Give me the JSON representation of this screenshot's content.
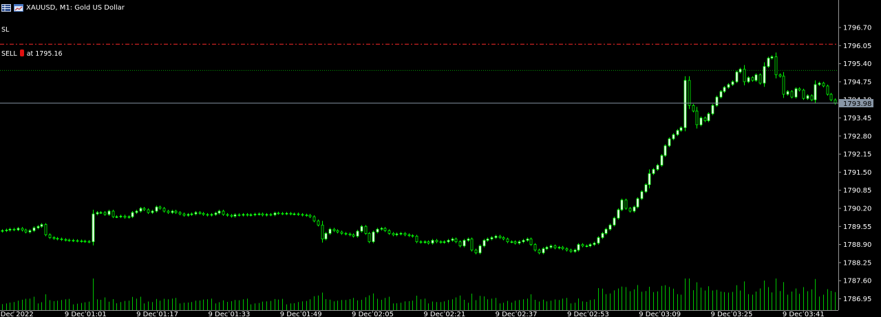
{
  "header": {
    "title": "XAUUSD, M1:  Gold US Dollar",
    "icons": [
      "grid-icon",
      "chart-window-icon"
    ]
  },
  "trade_lines": {
    "sl_label": "SL",
    "sell_label": "SELL",
    "sell_at": "at 1795.16",
    "sl_price": 1796.1,
    "sell_price": 1795.16
  },
  "colors": {
    "background": "#000000",
    "candle": "#00ff00",
    "candle_body_up": "#ffffff",
    "volume": "#00c800",
    "axis": "#9a9a9a",
    "sl_line": "#ff2a2a",
    "sell_line": "#00a000",
    "bid_line": "#8896a6",
    "bid_tag": "#8896a6"
  },
  "chart_data": {
    "type": "candlestick",
    "symbol": "XAUUSD",
    "timeframe": "M1",
    "title": "XAUUSD, M1:  Gold US Dollar",
    "current_price": 1793.98,
    "current_price_label": "1793.98",
    "ylim": [
      1786.53,
      1797.0
    ],
    "y_ticks": [
      "1796.70",
      "1796.05",
      "1795.40",
      "1794.75",
      "1794.10",
      "1793.45",
      "1792.80",
      "1792.15",
      "1791.50",
      "1790.85",
      "1790.20",
      "1789.55",
      "1788.90",
      "1788.25",
      "1787.60",
      "1786.95"
    ],
    "x_ticks": [
      "9 Dec 2022",
      "9 Dec 01:01",
      "9 Dec 01:17",
      "9 Dec 01:33",
      "9 Dec 01:49",
      "9 Dec 02:05",
      "9 Dec 02:21",
      "9 Dec 02:37",
      "9 Dec 02:53",
      "9 Dec 03:09",
      "9 Dec 03:25",
      "9 Dec 03:41"
    ],
    "closes": [
      1789.4,
      1789.42,
      1789.45,
      1789.43,
      1789.48,
      1789.42,
      1789.35,
      1789.4,
      1789.5,
      1789.55,
      1789.62,
      1789.25,
      1789.15,
      1789.12,
      1789.1,
      1789.08,
      1789.06,
      1789.05,
      1789.04,
      1789.03,
      1789.02,
      1789.01,
      1789.0,
      1790.0,
      1790.05,
      1790.05,
      1789.98,
      1790.1,
      1789.9,
      1789.9,
      1789.92,
      1789.88,
      1789.9,
      1790.05,
      1790.1,
      1790.2,
      1790.15,
      1790.05,
      1790.1,
      1790.25,
      1790.2,
      1790.1,
      1790.05,
      1790.1,
      1790.05,
      1790.0,
      1789.95,
      1789.98,
      1790.0,
      1790.05,
      1790.02,
      1789.98,
      1789.96,
      1789.98,
      1790.03,
      1790.1,
      1789.98,
      1789.95,
      1789.92,
      1789.97,
      1789.96,
      1789.98,
      1789.96,
      1789.97,
      1789.99,
      1790.0,
      1789.96,
      1789.98,
      1789.97,
      1790.03,
      1790.02,
      1790.01,
      1790.02,
      1790.0,
      1790.0,
      1789.98,
      1789.96,
      1789.95,
      1789.9,
      1789.75,
      1789.6,
      1789.1,
      1789.3,
      1789.45,
      1789.4,
      1789.35,
      1789.3,
      1789.28,
      1789.25,
      1789.2,
      1789.38,
      1789.55,
      1789.3,
      1789.0,
      1789.35,
      1789.45,
      1789.48,
      1789.4,
      1789.3,
      1789.25,
      1789.28,
      1789.3,
      1789.25,
      1789.22,
      1789.2,
      1789.0,
      1788.98,
      1789.0,
      1788.95,
      1789.05,
      1789.0,
      1788.98,
      1789.0,
      1789.05,
      1789.1,
      1789.0,
      1788.85,
      1789.05,
      1789.1,
      1788.7,
      1788.6,
      1788.85,
      1789.05,
      1789.1,
      1789.15,
      1789.2,
      1789.15,
      1789.1,
      1789.0,
      1789.0,
      1788.95,
      1789.0,
      1789.05,
      1789.1,
      1788.9,
      1788.7,
      1788.6,
      1788.75,
      1788.8,
      1788.85,
      1788.78,
      1788.8,
      1788.75,
      1788.7,
      1788.65,
      1788.7,
      1788.9,
      1788.85,
      1788.85,
      1788.9,
      1788.95,
      1789.15,
      1789.3,
      1789.45,
      1789.6,
      1789.85,
      1790.15,
      1790.5,
      1790.2,
      1790.1,
      1790.25,
      1790.55,
      1790.8,
      1791.05,
      1791.45,
      1791.6,
      1791.75,
      1792.1,
      1792.45,
      1792.7,
      1792.85,
      1793.0,
      1793.1,
      1794.8,
      1793.9,
      1793.7,
      1793.2,
      1793.45,
      1793.35,
      1793.6,
      1793.9,
      1794.2,
      1794.4,
      1794.55,
      1794.65,
      1794.75,
      1795.1,
      1795.2,
      1794.75,
      1794.9,
      1794.8,
      1795.0,
      1794.7,
      1795.3,
      1795.6,
      1795.65,
      1795.0,
      1794.95,
      1794.3,
      1794.4,
      1794.2,
      1794.5,
      1794.45,
      1794.15,
      1794.25,
      1794.1,
      1794.65,
      1794.7,
      1794.6,
      1794.3,
      1794.1,
      1793.98
    ]
  }
}
